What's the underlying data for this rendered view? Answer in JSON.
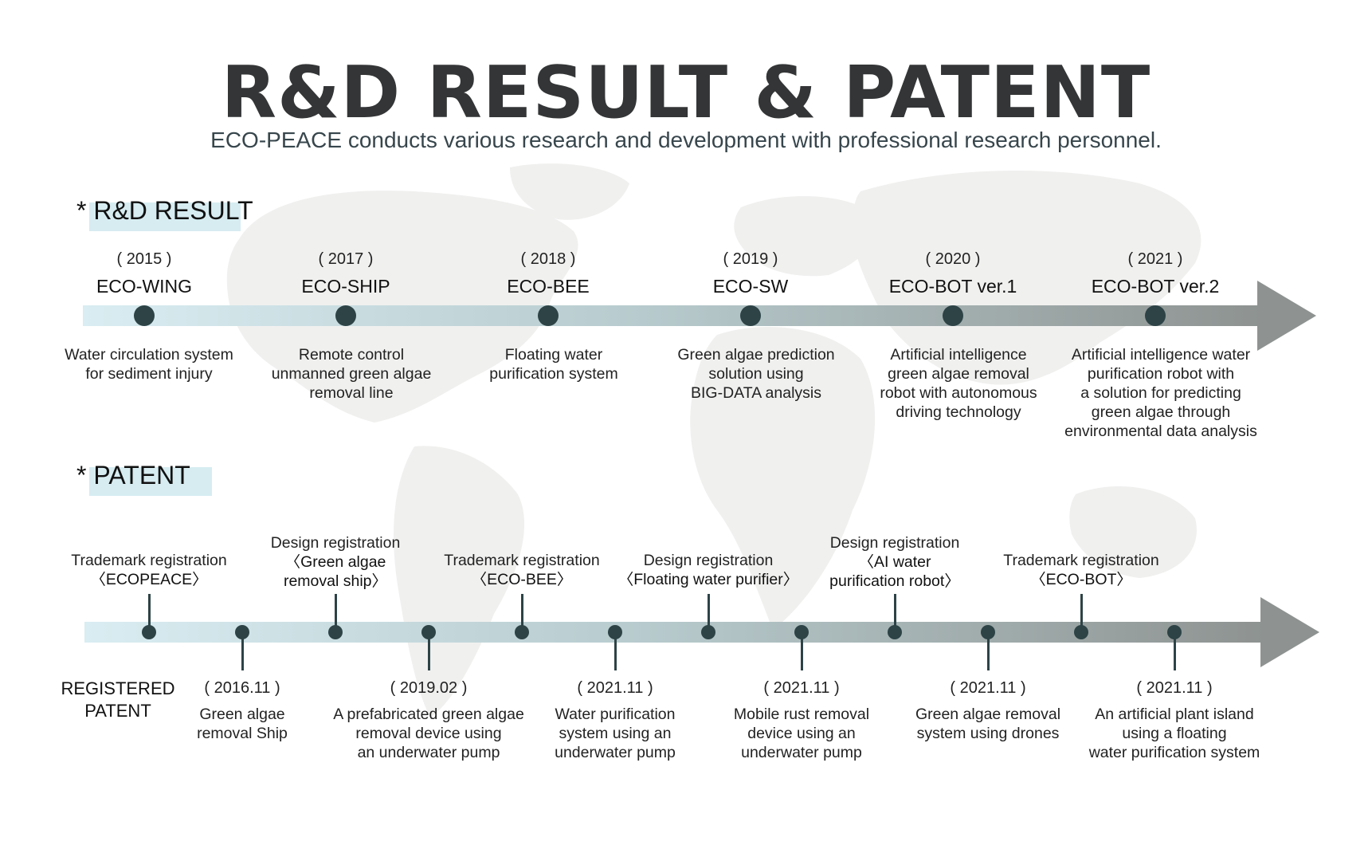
{
  "header": {
    "title": "R&D RESULT & PATENT",
    "subtitle": "ECO-PEACE conducts various research and development with professional research personnel."
  },
  "rd": {
    "heading": "* R&D RESULT",
    "items": [
      {
        "year": "( 2015 )",
        "name": "ECO-WING",
        "desc": "Water circulation system\nfor sediment injury"
      },
      {
        "year": "( 2017 )",
        "name": "ECO-SHIP",
        "desc": "Remote control\nunmanned green algae\nremoval line"
      },
      {
        "year": "( 2018 )",
        "name": "ECO-BEE",
        "desc": "Floating water\npurification system"
      },
      {
        "year": "( 2019 )",
        "name": "ECO-SW",
        "desc": "Green algae prediction\nsolution using\nBIG-DATA analysis"
      },
      {
        "year": "( 2020 )",
        "name": "ECO-BOT ver.1",
        "desc": "Artificial intelligence\ngreen algae removal\nrobot with autonomous\ndriving technology"
      },
      {
        "year": "( 2021 )",
        "name": "ECO-BOT ver.2",
        "desc": "Artificial intelligence water\npurification robot with\na solution for predicting\ngreen algae through\nenvironmental data analysis"
      }
    ]
  },
  "patent": {
    "heading": "* PATENT",
    "registered_label": "REGISTERED\nPATENT",
    "above": [
      {
        "line1": "Trademark registration",
        "line2": "〈ECOPEACE〉"
      },
      {
        "line1": "Design registration",
        "line2": "〈Green algae\nremoval ship〉"
      },
      {
        "line1": "Trademark registration",
        "line2": "〈ECO-BEE〉"
      },
      {
        "line1": "Design registration",
        "line2": "〈Floating water purifier〉"
      },
      {
        "line1": "Design registration",
        "line2": "〈AI water\npurification robot〉"
      },
      {
        "line1": "Trademark registration",
        "line2": "〈ECO-BOT〉"
      }
    ],
    "below": [
      {
        "date": "( 2016.11 )",
        "desc": "Green algae\nremoval Ship"
      },
      {
        "date": "( 2019.02 )",
        "desc": "A prefabricated green algae\nremoval device using\nan underwater pump"
      },
      {
        "date": "( 2021.11 )",
        "desc": "Water purification\nsystem using an\nunderwater pump"
      },
      {
        "date": "( 2021.11 )",
        "desc": "Mobile rust removal\ndevice using an\nunderwater pump"
      },
      {
        "date": "( 2021.11 )",
        "desc": "Green algae removal\nsystem using drones"
      },
      {
        "date": "( 2021.11 )",
        "desc": "An artificial plant island\nusing a floating\nwater purification system"
      }
    ]
  },
  "colors": {
    "dot": "#2d4346",
    "band_start": "#d9edf2",
    "band_end": "#8e9391",
    "highlight": "#d6ecf1",
    "map": "#eeeeee"
  }
}
